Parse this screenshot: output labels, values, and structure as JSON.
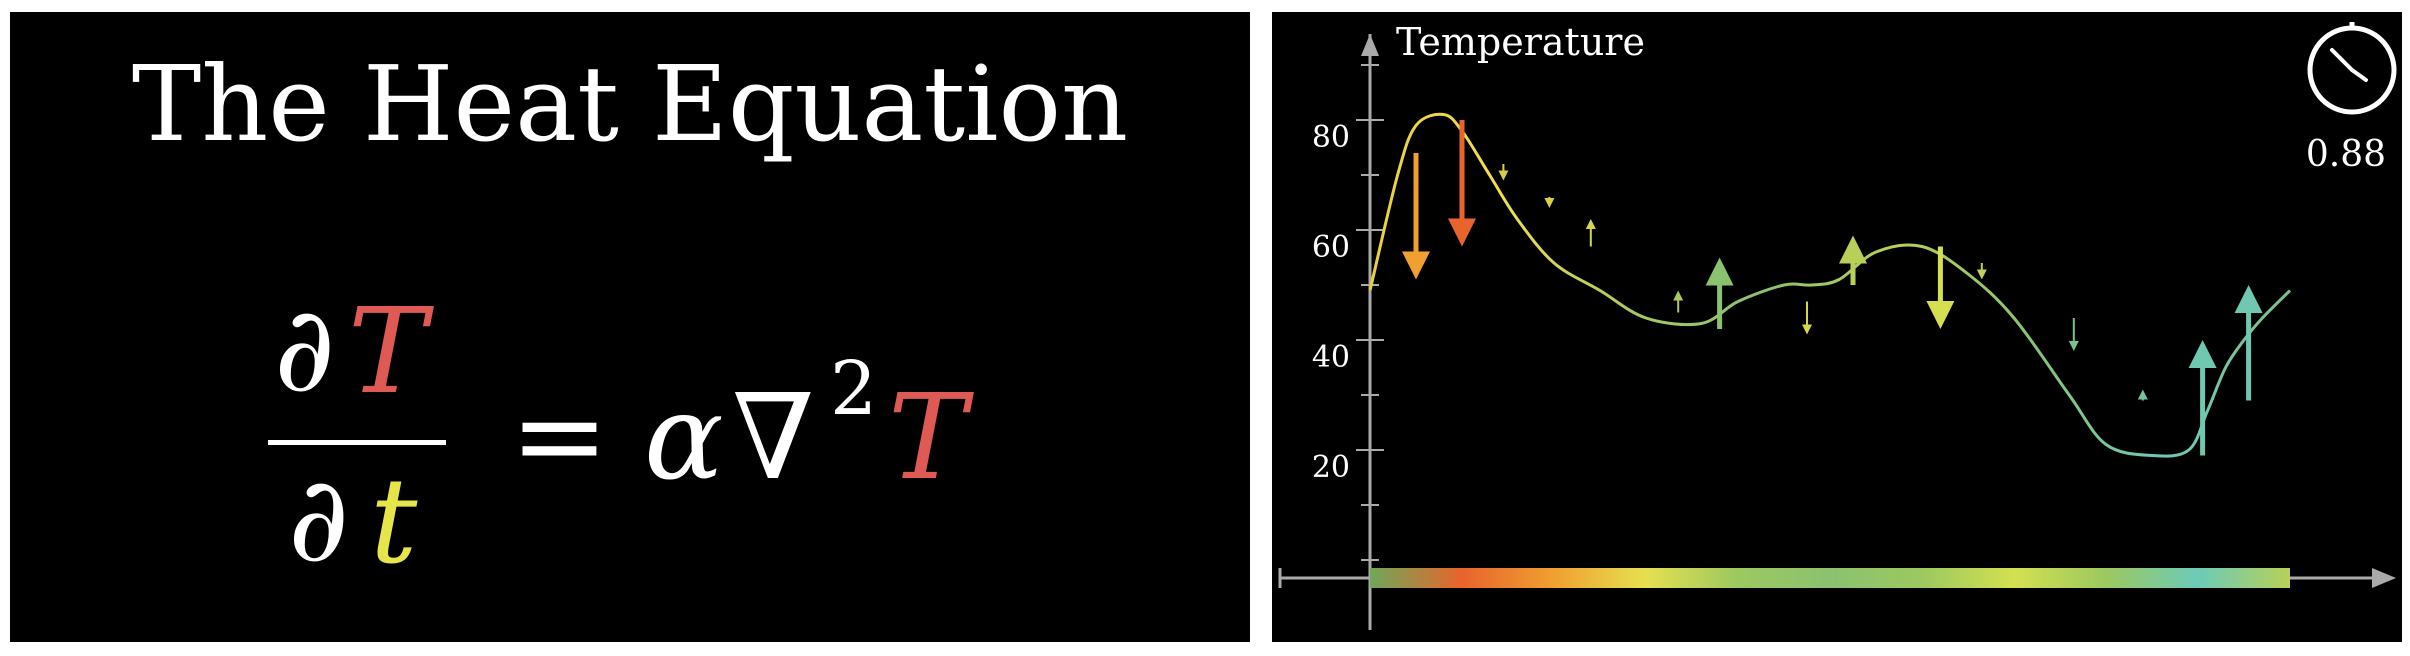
{
  "left": {
    "title": "The Heat Equation",
    "equation": {
      "partial": "∂",
      "numerator_var": "T",
      "denominator_var": "t",
      "equals": "=",
      "alpha": "α",
      "nabla": "∇",
      "power": "2",
      "rhs_var": "T"
    },
    "colors": {
      "T": "#e05a55",
      "t": "#e6e64a",
      "text": "#ffffff"
    }
  },
  "right": {
    "clock_value": "0.88",
    "chart_data": {
      "type": "line",
      "ylabel": "Temperature",
      "yticks": [
        20,
        40,
        60,
        80
      ],
      "ylim": [
        0,
        100
      ],
      "xlim": [
        0,
        1
      ],
      "grid": false,
      "x": [
        0.0,
        0.03,
        0.05,
        0.08,
        0.1,
        0.13,
        0.16,
        0.2,
        0.25,
        0.3,
        0.36,
        0.4,
        0.45,
        0.48,
        0.51,
        0.55,
        0.6,
        0.65,
        0.7,
        0.76,
        0.8,
        0.85,
        0.89,
        0.91,
        0.93,
        0.95,
        0.97,
        1.0
      ],
      "y": [
        49,
        70,
        79,
        81,
        78,
        70,
        62,
        54,
        49,
        44,
        43,
        47,
        50,
        50,
        51,
        56,
        57,
        52,
        44,
        30,
        21,
        19,
        20,
        27,
        35,
        40,
        44,
        49
      ],
      "arrows": [
        {
          "x": 0.05,
          "from": 74,
          "to": 51,
          "color": "#f0a030"
        },
        {
          "x": 0.1,
          "from": 80,
          "to": 57,
          "color": "#e8642c"
        },
        {
          "x": 0.145,
          "from": 72,
          "to": 69,
          "color": "#d8d040"
        },
        {
          "x": 0.195,
          "from": 66,
          "to": 64,
          "color": "#d8d040"
        },
        {
          "x": 0.24,
          "from": 57,
          "to": 62,
          "color": "#d2d84a"
        },
        {
          "x": 0.335,
          "from": 45,
          "to": 49,
          "color": "#a8c860"
        },
        {
          "x": 0.38,
          "from": 42,
          "to": 55,
          "color": "#8bc270"
        },
        {
          "x": 0.475,
          "from": 47,
          "to": 41,
          "color": "#d2d84a"
        },
        {
          "x": 0.525,
          "from": 50,
          "to": 59,
          "color": "#b8d05a"
        },
        {
          "x": 0.62,
          "from": 57,
          "to": 42,
          "color": "#d4e050"
        },
        {
          "x": 0.665,
          "from": 54,
          "to": 51,
          "color": "#c0d058"
        },
        {
          "x": 0.765,
          "from": 44,
          "to": 38,
          "color": "#7cc08c"
        },
        {
          "x": 0.84,
          "from": 29,
          "to": 31,
          "color": "#7cc0a0"
        },
        {
          "x": 0.905,
          "from": 19,
          "to": 40,
          "color": "#70c8b0"
        },
        {
          "x": 0.955,
          "from": 29,
          "to": 50,
          "color": "#70c8b0"
        }
      ],
      "rod_colors": [
        "#6fa85a",
        "#e8642c",
        "#f0a030",
        "#e6e050",
        "#9cc860",
        "#8bc270",
        "#9cc860",
        "#d4e050",
        "#9cc860",
        "#6ccbb8",
        "#b8d058"
      ]
    }
  }
}
